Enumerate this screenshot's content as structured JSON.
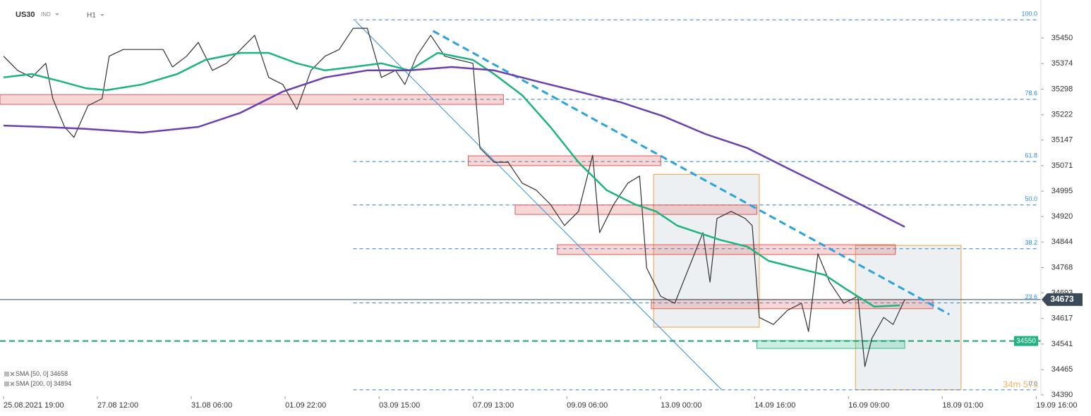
{
  "chart_data": {
    "type": "line",
    "title": "US30",
    "instrument_type": "IND",
    "timeframe": "H1",
    "xlim": [
      -1.5,
      442
    ],
    "xticks": [
      {
        "value": 0,
        "label": "25.08.2021 19:00"
      },
      {
        "value": 40,
        "label": "27.08 12:00"
      },
      {
        "value": 80,
        "label": "31.08 06:00"
      },
      {
        "value": 120,
        "label": "01.09 22:00"
      },
      {
        "value": 160,
        "label": "03.09 15:00"
      },
      {
        "value": 200,
        "label": "07.09 13:00"
      },
      {
        "value": 240,
        "label": "09.09 06:00"
      },
      {
        "value": 280,
        "label": "13.09 00:00"
      },
      {
        "value": 320,
        "label": "14.09 16:00"
      },
      {
        "value": 360,
        "label": "16.09 09:00"
      },
      {
        "value": 400,
        "label": "18.09 01:00"
      },
      {
        "value": 440,
        "label": "19.09 16:00"
      }
    ],
    "ylim": [
      34390,
      35563
    ],
    "yticks": [
      34390,
      34465,
      34541,
      34617,
      34693,
      34768,
      34844,
      34920,
      34995,
      35071,
      35147,
      35222,
      35298,
      35374,
      35450
    ],
    "series": [
      {
        "color": "#333333",
        "x": [
          0,
          6,
          12,
          18,
          21,
          26,
          30,
          36,
          42,
          45,
          51,
          57,
          63,
          68,
          72,
          78,
          83,
          89,
          95,
          101,
          107,
          113,
          119,
          125,
          131,
          137,
          143,
          149,
          155,
          161,
          167,
          171,
          176,
          182,
          188,
          194,
          200,
          203,
          209,
          215,
          221,
          227,
          233,
          239,
          245,
          251,
          254,
          260,
          266,
          271,
          274,
          280,
          286,
          292,
          298,
          301,
          304,
          310,
          316,
          319,
          322,
          328,
          334,
          340,
          343,
          347,
          352,
          358,
          364,
          367,
          370,
          375,
          379,
          384
        ],
        "values": [
          35396,
          35354,
          35333,
          35375,
          35270,
          35186,
          35155,
          35249,
          35270,
          35396,
          35416,
          35416,
          35416,
          35416,
          35364,
          35396,
          35437,
          35354,
          35375,
          35416,
          35458,
          35333,
          35312,
          35238,
          35354,
          35396,
          35416,
          35479,
          35479,
          35333,
          35354,
          35312,
          35396,
          35458,
          35396,
          35385,
          35375,
          35123,
          35081,
          35081,
          35019,
          34998,
          34956,
          34893,
          34935,
          35102,
          34872,
          34956,
          35019,
          35040,
          34767,
          34683,
          34662,
          34767,
          34872,
          34725,
          34914,
          34935,
          34914,
          34893,
          34620,
          34599,
          34641,
          34662,
          34578,
          34809,
          34725,
          34662,
          34683,
          34474,
          34558,
          34620,
          34599,
          34673
        ]
      },
      {
        "name": "SMA [50, 0]",
        "legend_value": 34658,
        "color": "#1db37f",
        "x": [
          0,
          12,
          24,
          35,
          44,
          59,
          74,
          86,
          101,
          113,
          125,
          137,
          149,
          161,
          173,
          185,
          200,
          209,
          221,
          233,
          245,
          257,
          269,
          278,
          287,
          296,
          305,
          317,
          326,
          338,
          350,
          359,
          371,
          382
        ],
        "values": [
          35333,
          35343,
          35322,
          35301,
          35295,
          35312,
          35343,
          35385,
          35406,
          35406,
          35375,
          35354,
          35364,
          35375,
          35354,
          35406,
          35385,
          35343,
          35280,
          35186,
          35081,
          34998,
          34956,
          34935,
          34893,
          34872,
          34851,
          34830,
          34788,
          34767,
          34746,
          34704,
          34652,
          34656
        ]
      },
      {
        "name": "SMA [200, 0]",
        "legend_value": 34894,
        "color": "#6a3fb0",
        "x": [
          0,
          17,
          35,
          59,
          83,
          101,
          119,
          137,
          155,
          173,
          191,
          209,
          227,
          245,
          263,
          281,
          299,
          317,
          335,
          353,
          371,
          384
        ],
        "values": [
          35190,
          35186,
          35180,
          35169,
          35186,
          35228,
          35291,
          35333,
          35354,
          35354,
          35364,
          35354,
          35322,
          35291,
          35259,
          35218,
          35165,
          35123,
          35060,
          34998,
          34935,
          34889
        ]
      }
    ],
    "fib_start": 149,
    "fib_levels": [
      {
        "label": "100.0",
        "price": 35504
      },
      {
        "label": "78.6",
        "price": 35268
      },
      {
        "label": "61.8",
        "price": 35083
      },
      {
        "label": "50.0",
        "price": 34954
      },
      {
        "label": "38.2",
        "price": 34824
      },
      {
        "label": "23.6",
        "price": 34663
      },
      {
        "label": "0.0",
        "price": 34405
      }
    ],
    "zones": [
      {
        "x": [
          -1.5,
          213
        ],
        "price": [
          35253,
          35282
        ],
        "color": "#e05a5a"
      },
      {
        "x": [
          198,
          280
        ],
        "price": [
          35071,
          35100
        ],
        "color": "#e05a5a"
      },
      {
        "x": [
          218,
          321
        ],
        "price": [
          34926,
          34954
        ],
        "color": "#e05a5a"
      },
      {
        "x": [
          236,
          380
        ],
        "price": [
          34807,
          34836
        ],
        "color": "#e05a5a"
      },
      {
        "x": [
          276,
          396
        ],
        "price": [
          34646,
          34673
        ],
        "color": "#e05a5a"
      },
      {
        "x": [
          321,
          384
        ],
        "price": [
          34528,
          34551
        ],
        "color": "#2dbf8a"
      }
    ],
    "boxes": [
      {
        "x": [
          277,
          322
        ],
        "price": [
          34591,
          35045
        ]
      },
      {
        "x": [
          363,
          408
        ],
        "price": [
          34405,
          34834
        ]
      }
    ],
    "trendlines": [
      {
        "x": [
          183,
          403
        ],
        "price": [
          35471,
          34629
        ],
        "color": "#2aa3e0",
        "dashed": true
      },
      {
        "x": [
          150,
          306
        ],
        "price": [
          35500,
          34405
        ],
        "color": "#2b8fe0",
        "dashed": false
      }
    ],
    "current_price": 34673,
    "level_price": 34550,
    "countdown": "34m 57s"
  }
}
